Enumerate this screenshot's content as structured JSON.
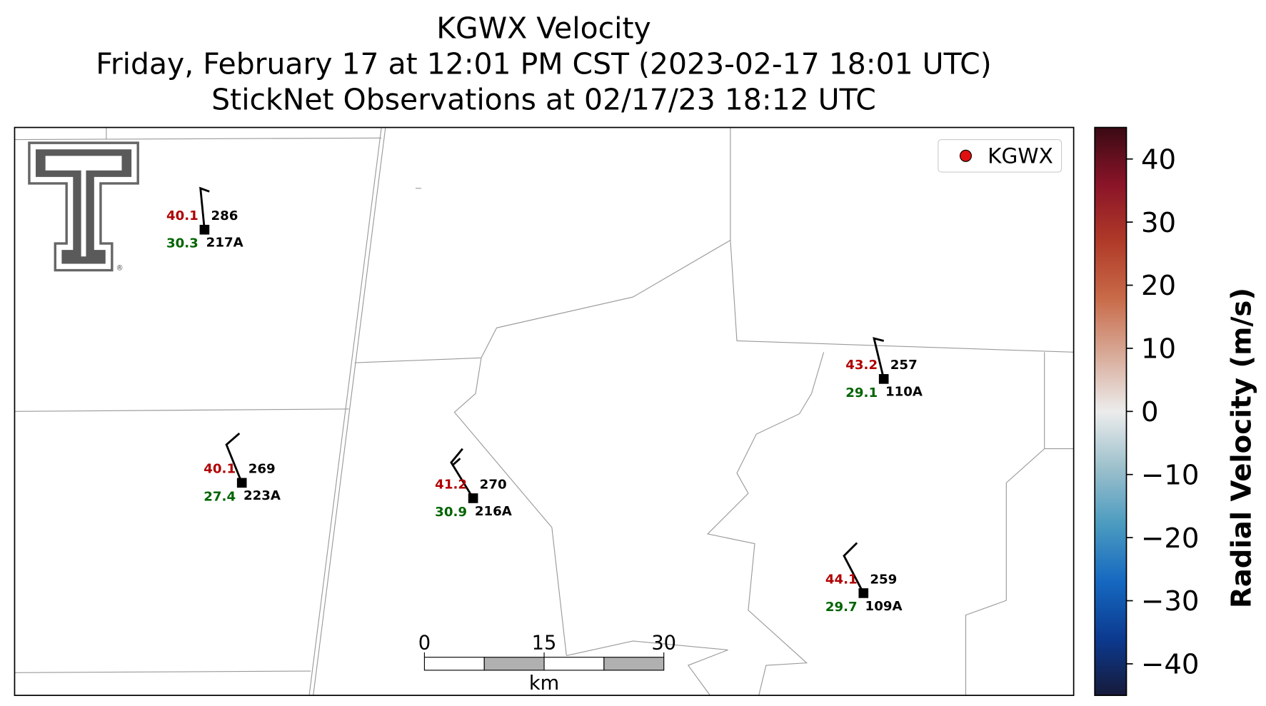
{
  "title": [
    "KGWX Velocity",
    "Friday, February 17 at 12:01 PM CST (2023-02-17 18:01 UTC)",
    "StickNet Observations at 02/17/23 18:12 UTC"
  ],
  "legend": {
    "label": "KGWX",
    "color": "#e01010"
  },
  "logo": {
    "mark": "®"
  },
  "stations": [
    {
      "id": "217A",
      "temperature": 40.1,
      "dewpoint": 30.3,
      "pressure": 286
    },
    {
      "id": "223A",
      "temperature": 40.1,
      "dewpoint": 27.4,
      "pressure": 269
    },
    {
      "id": "216A",
      "temperature": 41.2,
      "dewpoint": 30.9,
      "pressure": 270
    },
    {
      "id": "110A",
      "temperature": 43.2,
      "dewpoint": 29.1,
      "pressure": 257
    },
    {
      "id": "109A",
      "temperature": 44.1,
      "dewpoint": 29.7,
      "pressure": 259
    }
  ],
  "temperature_color": "#b00000",
  "dewpoint_color": "#006400",
  "scalebar": {
    "unit": "km",
    "lim": [
      0,
      30
    ],
    "ticks": [
      0,
      15,
      30
    ]
  },
  "colorbar": {
    "label": "Radial Velocity (m/s)",
    "lim": [
      -45,
      45
    ],
    "ticks": [
      {
        "value": -40,
        "label": "−40"
      },
      {
        "value": -30,
        "label": "−30"
      },
      {
        "value": -20,
        "label": "−20"
      },
      {
        "value": -10,
        "label": "−10"
      },
      0,
      10,
      20,
      30,
      40
    ],
    "colormap": [
      "#161a3a",
      "#0c3a90",
      "#1568c0",
      "#4a9ac0",
      "#9cc0cc",
      "#ececec",
      "#d8aa98",
      "#c86a48",
      "#b03a28",
      "#8a1428",
      "#3a0a14"
    ]
  }
}
